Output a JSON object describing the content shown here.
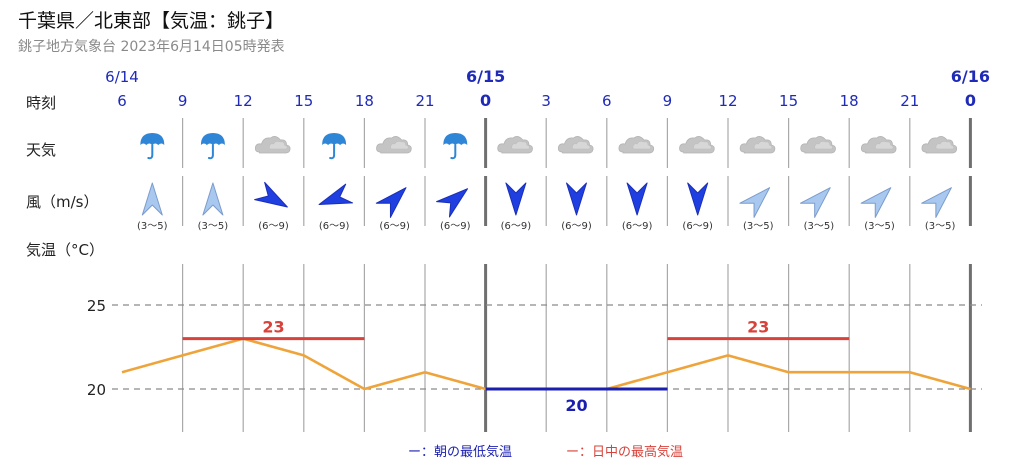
{
  "header": {
    "title": "千葉県／北東部【気温：銚子】",
    "subtitle": "銚子地方気象台 2023年6月14日05時発表"
  },
  "row_labels": {
    "time": "時刻",
    "weather": "天気",
    "wind": "風（m/s）",
    "temperature": "気温（°C）"
  },
  "dates": [
    "6/14",
    "6/15",
    "6/16"
  ],
  "hours": [
    "6",
    "9",
    "12",
    "15",
    "18",
    "21",
    "0",
    "3",
    "6",
    "9",
    "12",
    "15",
    "18",
    "21",
    "0"
  ],
  "weather": [
    "rain-umbrella-icon",
    "rain-umbrella-icon",
    "cloud-icon",
    "rain-umbrella-icon",
    "cloud-icon",
    "rain-umbrella-icon",
    "cloud-icon",
    "cloud-icon",
    "cloud-icon",
    "cloud-icon",
    "cloud-icon",
    "cloud-icon",
    "cloud-icon",
    "cloud-icon"
  ],
  "wind": [
    {
      "speed": "(3～5)",
      "toward_deg": 0,
      "strong": false
    },
    {
      "speed": "(3～5)",
      "toward_deg": 0,
      "strong": false
    },
    {
      "speed": "(6～9)",
      "toward_deg": 120,
      "strong": true
    },
    {
      "speed": "(6～9)",
      "toward_deg": 250,
      "strong": true
    },
    {
      "speed": "(6～9)",
      "toward_deg": 45,
      "strong": true
    },
    {
      "speed": "(6～9)",
      "toward_deg": 50,
      "strong": true
    },
    {
      "speed": "(6～9)",
      "toward_deg": 180,
      "strong": true
    },
    {
      "speed": "(6～9)",
      "toward_deg": 180,
      "strong": true
    },
    {
      "speed": "(6～9)",
      "toward_deg": 180,
      "strong": true
    },
    {
      "speed": "(6～9)",
      "toward_deg": 180,
      "strong": true
    },
    {
      "speed": "(3～5)",
      "toward_deg": 45,
      "strong": false
    },
    {
      "speed": "(3～5)",
      "toward_deg": 45,
      "strong": false
    },
    {
      "speed": "(3～5)",
      "toward_deg": 45,
      "strong": false
    },
    {
      "speed": "(3～5)",
      "toward_deg": 45,
      "strong": false
    }
  ],
  "chart_data": {
    "type": "line",
    "ylabel": "気温（°C）",
    "x": [
      "6/14 6",
      "9",
      "12",
      "15",
      "18",
      "21",
      "6/15 0",
      "3",
      "6",
      "9",
      "12",
      "15",
      "18",
      "21",
      "6/16 0"
    ],
    "series": [
      {
        "name": "",
        "values": [
          21,
          22,
          23,
          22,
          20,
          21,
          20,
          20,
          20,
          21,
          22,
          21,
          21,
          21,
          20
        ]
      }
    ],
    "yticks": [
      20,
      25
    ],
    "ylim": [
      16.5,
      27.5
    ],
    "grid": true,
    "min_temp": {
      "label": "20",
      "value": 20,
      "from_index": 6,
      "to_index": 9
    },
    "max_temp": [
      {
        "label": "23",
        "value": 23,
        "from_index": 1,
        "to_index": 4
      },
      {
        "label": "23",
        "value": 23,
        "from_index": 9,
        "to_index": 12
      }
    ],
    "legend": [
      {
        "label": "ー：朝の最低気温",
        "color": "#1a1fb0"
      },
      {
        "label": "ー：日中の最高気温",
        "color": "#d9423a"
      }
    ]
  },
  "colors": {
    "blue": "#1f2bb8",
    "max_red": "#d9423a",
    "line_orange": "#eea43a",
    "min_blue": "#1a1fb0",
    "umbrella": "#2f86d6",
    "cloud": "#c4c4c4",
    "arrow_strong": "#1f3fe0",
    "arrow_weak": "#a8c8ef"
  }
}
